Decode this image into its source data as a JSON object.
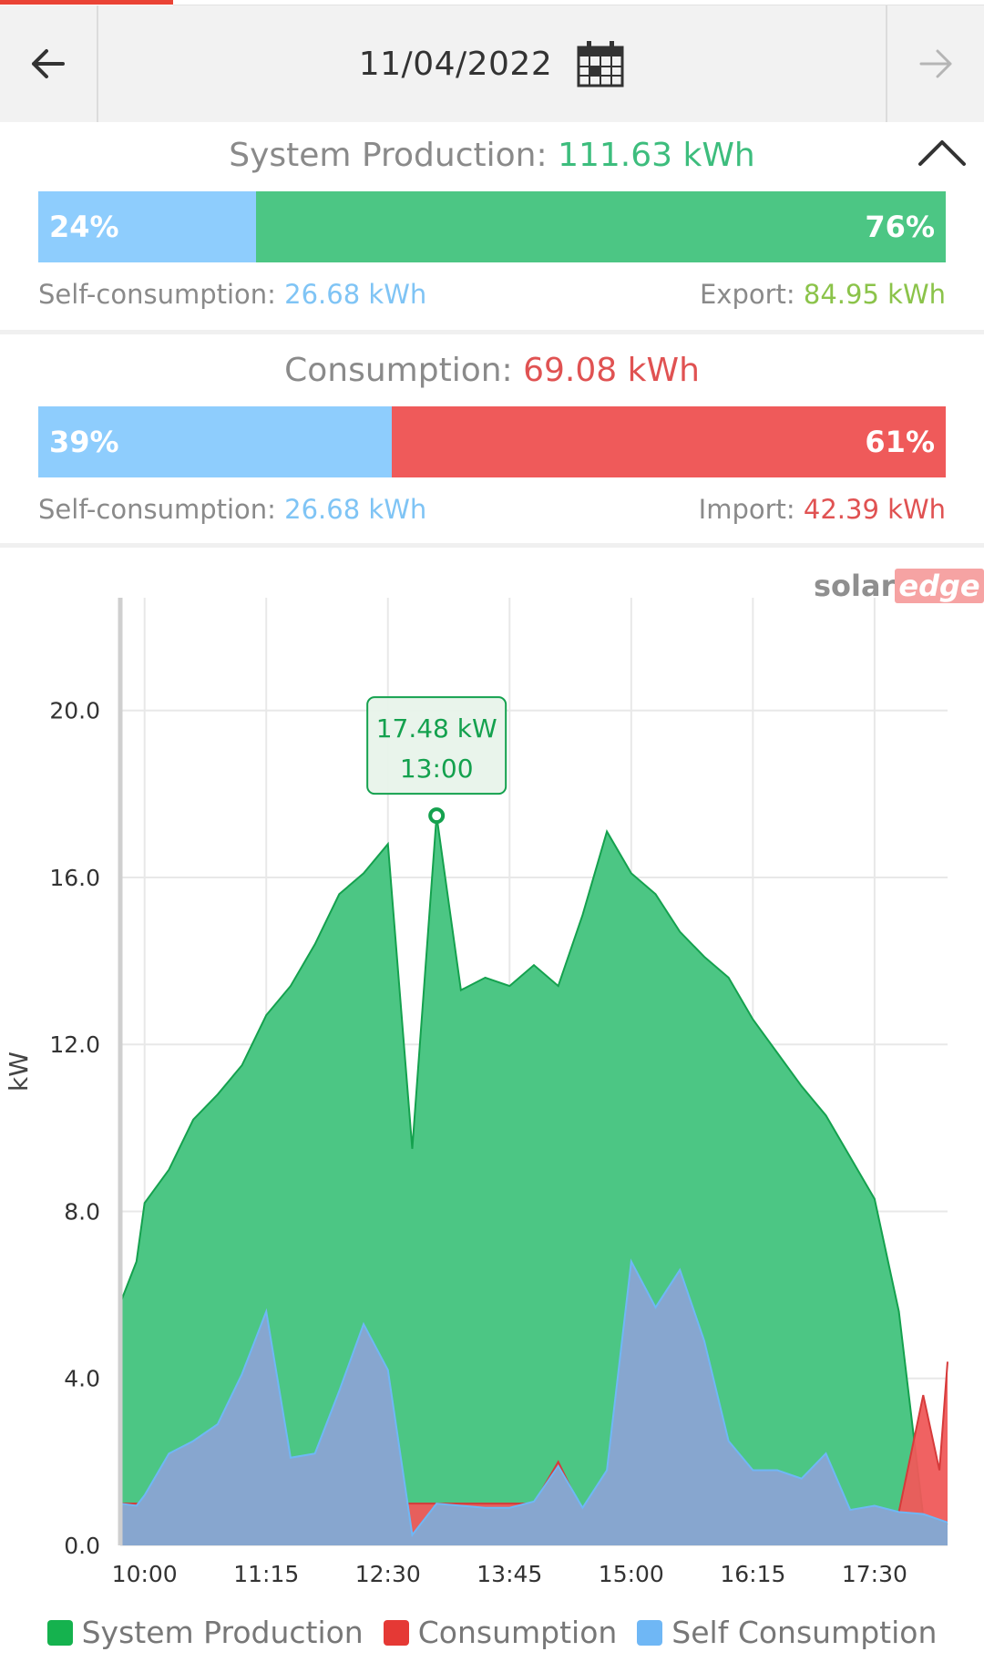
{
  "header": {
    "date": "11/04/2022",
    "back_icon": "arrow-left-icon",
    "forward_icon": "arrow-right-icon",
    "calendar_icon": "calendar-icon"
  },
  "production": {
    "title_label": "System Production:",
    "title_value": "111.63 kWh",
    "self_pct": "24%",
    "export_pct": "76%",
    "self_fraction": 0.24,
    "self_label": "Self-consumption:",
    "self_value": "26.68 kWh",
    "export_label": "Export:",
    "export_value": "84.95 kWh",
    "collapse_icon": "chevron-up-icon"
  },
  "consumption": {
    "title_label": "Consumption:",
    "title_value": "69.08 kWh",
    "self_pct": "39%",
    "import_pct": "61%",
    "self_fraction": 0.39,
    "self_label": "Self-consumption:",
    "self_value": "26.68 kWh",
    "import_label": "Import:",
    "import_value": "42.39 kWh"
  },
  "colors": {
    "production": "#4cc684",
    "production_line": "#14a14e",
    "self": "#8ecdfd",
    "self_area": "#87a6cf",
    "consumption": "#ef5a5a",
    "export_text": "#8bc34a",
    "import_text": "#e05252",
    "production_text": "#3dbd7d",
    "self_text": "#7fc4f5"
  },
  "logo": {
    "part1": "solar",
    "part2": "edge"
  },
  "chart_data": {
    "type": "area",
    "ylabel": "kW",
    "ylim": [
      0,
      22.7
    ],
    "yticks": [
      0,
      4,
      8,
      12,
      16,
      20
    ],
    "ytick_labels": [
      "0.0",
      "4.0",
      "8.0",
      "12.0",
      "16.0",
      "20.0"
    ],
    "xtick_labels": [
      "10:00",
      "11:15",
      "12:30",
      "13:45",
      "15:00",
      "16:15",
      "17:30"
    ],
    "x_start": "09:45",
    "x_end": "18:15",
    "series": [
      {
        "name": "System Production",
        "color": "#4cc684",
        "points": [
          [
            "09:45",
            5.8
          ],
          [
            "09:55",
            6.8
          ],
          [
            "10:00",
            8.2
          ],
          [
            "10:15",
            9.0
          ],
          [
            "10:30",
            10.2
          ],
          [
            "10:45",
            10.8
          ],
          [
            "11:00",
            11.5
          ],
          [
            "11:15",
            12.7
          ],
          [
            "11:30",
            13.4
          ],
          [
            "11:45",
            14.4
          ],
          [
            "12:00",
            15.6
          ],
          [
            "12:15",
            16.1
          ],
          [
            "12:30",
            16.8
          ],
          [
            "12:45",
            9.5
          ],
          [
            "13:00",
            17.48
          ],
          [
            "13:15",
            13.3
          ],
          [
            "13:30",
            13.6
          ],
          [
            "13:45",
            13.4
          ],
          [
            "14:00",
            13.9
          ],
          [
            "14:15",
            13.4
          ],
          [
            "14:30",
            15.1
          ],
          [
            "14:45",
            17.1
          ],
          [
            "15:00",
            16.1
          ],
          [
            "15:15",
            15.6
          ],
          [
            "15:30",
            14.7
          ],
          [
            "15:45",
            14.1
          ],
          [
            "16:00",
            13.6
          ],
          [
            "16:15",
            12.6
          ],
          [
            "16:30",
            11.8
          ],
          [
            "16:45",
            11.0
          ],
          [
            "17:00",
            10.3
          ],
          [
            "17:15",
            9.3
          ],
          [
            "17:30",
            8.3
          ],
          [
            "17:45",
            5.6
          ],
          [
            "18:00",
            0.7
          ],
          [
            "18:15",
            0.5
          ]
        ]
      },
      {
        "name": "Consumption",
        "color": "#ef5a5a",
        "points": [
          [
            "09:45",
            1.0
          ],
          [
            "14:00",
            1.0
          ],
          [
            "14:15",
            2.0
          ],
          [
            "14:30",
            0.8
          ],
          [
            "17:45",
            0.8
          ],
          [
            "18:00",
            3.6
          ],
          [
            "18:10",
            1.8
          ],
          [
            "18:15",
            4.4
          ]
        ]
      },
      {
        "name": "Self Consumption",
        "color": "#6fb7f5",
        "points": [
          [
            "09:45",
            1.0
          ],
          [
            "09:55",
            0.95
          ],
          [
            "10:00",
            1.2
          ],
          [
            "10:15",
            2.2
          ],
          [
            "10:30",
            2.5
          ],
          [
            "10:45",
            2.9
          ],
          [
            "11:00",
            4.1
          ],
          [
            "11:15",
            5.6
          ],
          [
            "11:30",
            2.1
          ],
          [
            "11:45",
            2.2
          ],
          [
            "12:00",
            3.7
          ],
          [
            "12:15",
            5.3
          ],
          [
            "12:30",
            4.2
          ],
          [
            "12:45",
            0.25
          ],
          [
            "13:00",
            1.0
          ],
          [
            "13:15",
            0.95
          ],
          [
            "13:30",
            0.9
          ],
          [
            "13:45",
            0.9
          ],
          [
            "14:00",
            1.05
          ],
          [
            "14:15",
            1.9
          ],
          [
            "14:30",
            0.9
          ],
          [
            "14:45",
            1.8
          ],
          [
            "15:00",
            6.8
          ],
          [
            "15:15",
            5.7
          ],
          [
            "15:30",
            6.6
          ],
          [
            "15:45",
            4.9
          ],
          [
            "16:00",
            2.5
          ],
          [
            "16:15",
            1.8
          ],
          [
            "16:30",
            1.8
          ],
          [
            "16:45",
            1.6
          ],
          [
            "17:00",
            2.2
          ],
          [
            "17:15",
            0.85
          ],
          [
            "17:30",
            0.95
          ],
          [
            "17:45",
            0.8
          ],
          [
            "18:00",
            0.75
          ],
          [
            "18:15",
            0.55
          ]
        ]
      }
    ],
    "tooltip": {
      "value": "17.48 kW",
      "time": "13:00",
      "at": "13:00",
      "y": 17.48
    },
    "legend": [
      "System Production",
      "Consumption",
      "Self Consumption"
    ],
    "legend_position": "bottom",
    "grid": true
  }
}
